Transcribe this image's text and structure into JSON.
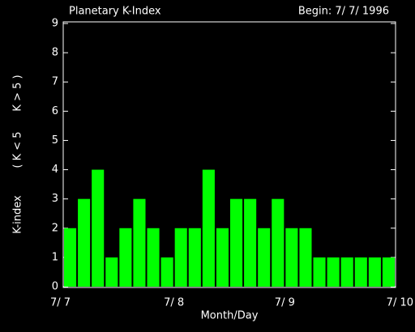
{
  "chart_data": {
    "type": "bar",
    "title": "Planetary K-Index",
    "subtitle": "Begin: 7/ 7/ 1996",
    "xlabel": "Month/Day",
    "ylabel": "K-index",
    "ylabel_legend": [
      {
        "label": "( K < 5",
        "color": "#00ff00"
      },
      {
        "label": "K > 5 )",
        "color": "#ff0000"
      }
    ],
    "x_labels": [
      "7/ 7",
      "7/ 8",
      "7/ 9",
      "7/ 10"
    ],
    "values": [
      2,
      3,
      4,
      1,
      2,
      3,
      2,
      1,
      2,
      2,
      4,
      2,
      3,
      3,
      2,
      3,
      2,
      2,
      1,
      1,
      1,
      1,
      1,
      1
    ],
    "color": "#00ff00",
    "ylim": [
      0,
      9
    ],
    "yticks": [
      0,
      1,
      2,
      3,
      4,
      5,
      6,
      7,
      8,
      9
    ]
  }
}
